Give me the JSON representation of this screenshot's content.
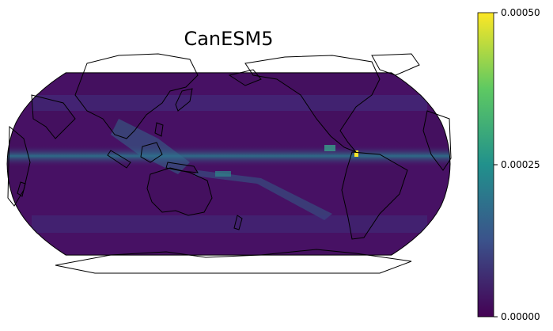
{
  "title": "CanESM5",
  "colorbar": {
    "ticks": [
      {
        "value": 0.0005,
        "label": "0.00050"
      },
      {
        "value": 0.00025,
        "label": "0.00025"
      },
      {
        "value": 0.0,
        "label": "0.00000"
      }
    ],
    "min": 0.0,
    "max": 0.0005,
    "colormap": "viridis",
    "colors": [
      "#440154",
      "#3b528b",
      "#21918c",
      "#5ec962",
      "#fde725"
    ]
  },
  "map": {
    "projection": "robinson",
    "central_longitude": 180,
    "ocean_fill": "#471164",
    "coastline_color": "#000000"
  }
}
